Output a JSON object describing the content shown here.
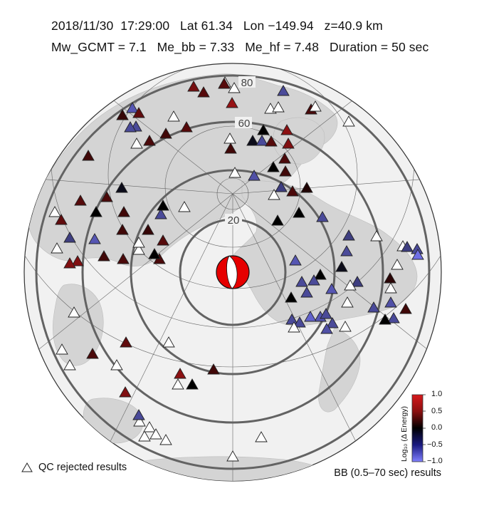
{
  "header": {
    "date": "2018/11/30",
    "time": "17:29:00",
    "lat": "Lat 61.34",
    "lon": "Lon −149.94",
    "depth": "z=40.9 km",
    "mw": "Mw_GCMT = 7.1",
    "me_bb": "Me_bb = 7.33",
    "me_hf": "Me_hf = 7.48",
    "duration": "Duration = 50 sec"
  },
  "map": {
    "projection": "azimuthal-equidistant",
    "center": {
      "lat": 61.34,
      "lon": -149.94
    },
    "distance_rings_deg": [
      20,
      40,
      60,
      80,
      90
    ],
    "ring_labels": [
      "20",
      "60",
      "80"
    ],
    "event_marker_icon": "focal-mechanism-beachball-icon",
    "station_icon": "triangle-icon",
    "colors": {
      "ring": "#666666",
      "land": "#d8d8d8",
      "ocean": "#f2f2f2",
      "qc_rejected": "#ffffff",
      "beachball": "#e60000"
    }
  },
  "colorbar": {
    "title": "Log₁₀ (Δ Energy)",
    "ticks": [
      "1.0",
      "0.5",
      "0.0",
      "−0.5",
      "−1.0"
    ],
    "range": [
      -1.0,
      1.0
    ],
    "colors": {
      "high": "#d7191c",
      "mid": "#000000",
      "low": "#7b7bff"
    }
  },
  "legend": {
    "qc_label": "QC rejected results",
    "bb_label": "BB (0.5–70 sec) results"
  },
  "stations": [
    {
      "v": 0.55
    },
    {
      "v": 0.4
    },
    {
      "v": null
    },
    {
      "v": -0.6
    },
    {
      "v": null
    },
    {
      "v": 0.7
    },
    {
      "v": -0.7
    },
    {
      "v": 0.45
    },
    {
      "v": 0.25
    },
    {
      "v": -0.6
    },
    {
      "v": 0.35
    },
    {
      "v": 0.3
    },
    {
      "v": null
    },
    {
      "v": 0.4
    },
    {
      "v": null
    },
    {
      "v": 0.0
    },
    {
      "v": 0.65
    },
    {
      "v": null
    },
    {
      "v": null
    },
    {
      "v": 0.35
    },
    {
      "v": -0.1
    },
    {
      "v": 0.3
    },
    {
      "v": null
    },
    {
      "v": -0.6
    },
    {
      "v": 0.4
    },
    {
      "v": 0.35
    },
    {
      "v": 0.3
    },
    {
      "v": 0.0
    },
    {
      "v": 0.35
    },
    {
      "v": 0.15
    },
    {
      "v": 0.3
    },
    {
      "v": 0.4
    },
    {
      "v": 0.0
    },
    {
      "v": null
    },
    {
      "v": 0.45
    },
    {
      "v": -0.1
    },
    {
      "v": 0.35
    },
    {
      "v": 0.3
    },
    {
      "v": -0.5
    },
    {
      "v": null
    },
    {
      "v": 0.3
    },
    {
      "v": 0.3
    },
    {
      "v": 0.35
    },
    {
      "v": -0.6
    },
    {
      "v": null
    },
    {
      "v": 0.0
    },
    {
      "v": null
    },
    {
      "v": 0.35
    },
    {
      "v": 0.0
    },
    {
      "v": 0.25
    },
    {
      "v": null
    },
    {
      "v": 0.6
    },
    {
      "v": -0.7
    },
    {
      "v": 0.6
    },
    {
      "v": null
    },
    {
      "v": null
    },
    {
      "v": 0.35
    },
    {
      "v": 0.45
    },
    {
      "v": null
    },
    {
      "v": null
    },
    {
      "v": 0.4
    },
    {
      "v": -0.6
    },
    {
      "v": -0.65
    },
    {
      "v": null
    },
    {
      "v": -0.5
    },
    {
      "v": null
    },
    {
      "v": 0.0
    },
    {
      "v": 0.0
    },
    {
      "v": -0.6
    },
    {
      "v": -0.5
    },
    {
      "v": -0.6
    },
    {
      "v": -0.7
    },
    {
      "v": -0.1
    },
    {
      "v": 0.0
    },
    {
      "v": -0.5
    },
    {
      "v": null
    },
    {
      "v": -0.6
    },
    {
      "v": -0.6
    },
    {
      "v": -0.7
    },
    {
      "v": 0.0
    },
    {
      "v": -0.6
    },
    {
      "v": -0.7
    },
    {
      "v": -0.8
    },
    {
      "v": -0.6
    },
    {
      "v": null
    },
    {
      "v": -0.6
    },
    {
      "v": -0.6
    },
    {
      "v": null
    },
    {
      "v": -0.6
    },
    {
      "v": -0.65
    },
    {
      "v": null
    },
    {
      "v": -0.6
    },
    {
      "v": -0.65
    },
    {
      "v": null
    },
    {
      "v": -0.6
    },
    {
      "v": 0.0
    },
    {
      "v": -0.5
    },
    {
      "v": -0.6
    },
    {
      "v": -0.9
    },
    {
      "v": null
    },
    {
      "v": 0.2
    },
    {
      "v": null
    },
    {
      "v": 0.3
    },
    {
      "v": null
    },
    {
      "v": null
    },
    {
      "v": null
    },
    {
      "v": 0.6
    },
    {
      "v": 0.65
    },
    {
      "v": null
    },
    {
      "v": 0.6
    },
    {
      "v": 0.3
    },
    {
      "v": null
    },
    {
      "v": null
    },
    {
      "v": null
    },
    {
      "v": null
    },
    {
      "v": 0.4
    },
    {
      "v": null
    },
    {
      "v": -0.6
    },
    {
      "v": null
    },
    {
      "v": null
    },
    {
      "v": null
    },
    {
      "v": 0.0
    }
  ]
}
